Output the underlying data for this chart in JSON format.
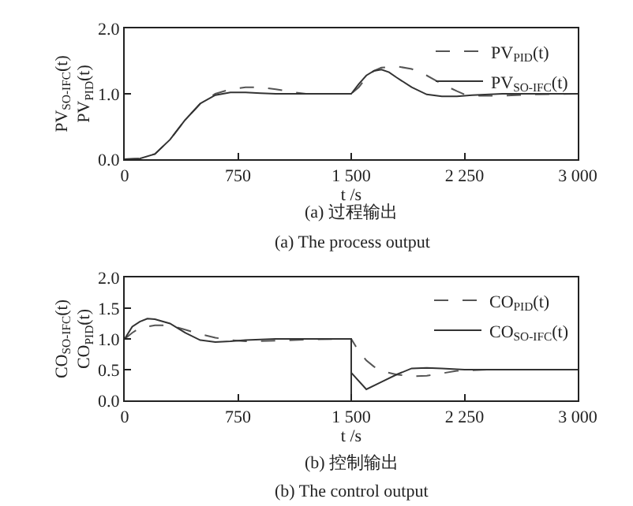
{
  "chart_data": [
    {
      "type": "line",
      "xlabel": "t /s",
      "ylabel": "PV$_{SO-IFC}$(t)\nPV$_{PID}$(t)",
      "xlim": [
        0,
        3000
      ],
      "ylim": [
        0,
        2
      ],
      "xticks": [
        {
          "value": 0,
          "label": "0"
        },
        {
          "value": 750,
          "label": "750"
        },
        {
          "value": 1500,
          "label": "1 500"
        },
        {
          "value": 2250,
          "label": "2 250"
        },
        {
          "value": 3000,
          "label": "3 000"
        }
      ],
      "yticks": [
        {
          "value": 0,
          "label": "0.0"
        },
        {
          "value": 1,
          "label": "1.0"
        },
        {
          "value": 2,
          "label": "2.0"
        }
      ],
      "legend": "top right",
      "series": [
        {
          "name": "PV$_{PID}$(t)",
          "color": "#555555",
          "line_style": "dashed",
          "x": [
            0,
            100,
            200,
            300,
            400,
            500,
            600,
            700,
            800,
            900,
            1000,
            1100,
            1200,
            1300,
            1400,
            1500,
            1550,
            1600,
            1650,
            1700,
            1800,
            1900,
            2000,
            2100,
            2200,
            2250,
            2350,
            2500,
            2700,
            3000
          ],
          "values": [
            0,
            0.01,
            0.08,
            0.3,
            0.6,
            0.85,
            1.0,
            1.07,
            1.1,
            1.1,
            1.07,
            1.03,
            1.0,
            1.0,
            1.0,
            1.0,
            1.1,
            1.25,
            1.35,
            1.4,
            1.42,
            1.38,
            1.28,
            1.15,
            1.04,
            0.99,
            0.97,
            0.97,
            0.99,
            1.0
          ]
        },
        {
          "name": "PV$_{SO-IFC}$(t)",
          "color": "#333333",
          "line_style": "solid",
          "x": [
            0,
            100,
            200,
            300,
            400,
            500,
            600,
            700,
            800,
            900,
            1000,
            1200,
            1400,
            1500,
            1550,
            1600,
            1650,
            1700,
            1750,
            1800,
            1900,
            2000,
            2100,
            2200,
            2300,
            2500,
            3000
          ],
          "values": [
            0,
            0.01,
            0.08,
            0.3,
            0.6,
            0.85,
            0.98,
            1.02,
            1.02,
            1.01,
            1.0,
            1.0,
            1.0,
            1.0,
            1.15,
            1.28,
            1.35,
            1.37,
            1.33,
            1.25,
            1.1,
            0.99,
            0.96,
            0.96,
            0.98,
            1.0,
            1.0
          ]
        }
      ],
      "annotations": [
        "(a) 过程输出",
        "(a) The process output"
      ]
    },
    {
      "type": "line",
      "xlabel": "t /s",
      "ylabel": "CO$_{SO-IFC}$(t)\nCO$_{PID}$(t)",
      "xlim": [
        0,
        3000
      ],
      "ylim": [
        0,
        2
      ],
      "xticks": [
        {
          "value": 0,
          "label": "0"
        },
        {
          "value": 750,
          "label": "750"
        },
        {
          "value": 1500,
          "label": "1 500"
        },
        {
          "value": 2250,
          "label": "2 250"
        },
        {
          "value": 3000,
          "label": "3 000"
        }
      ],
      "yticks": [
        {
          "value": 0,
          "label": "0.0"
        },
        0.5,
        {
          "value": 1,
          "label": "1.0"
        },
        1.5,
        {
          "value": 2,
          "label": "2.0"
        }
      ],
      "legend": "top right",
      "series": [
        {
          "name": "CO$_{PID}$(t)",
          "color": "#555555",
          "line_style": "dashed",
          "x": [
            0,
            50,
            100,
            150,
            200,
            300,
            400,
            500,
            600,
            700,
            800,
            1000,
            1200,
            1500,
            1550,
            1600,
            1650,
            1700,
            1800,
            1900,
            2000,
            2100,
            2200,
            2400,
            3000
          ],
          "values": [
            1.0,
            1.1,
            1.18,
            1.2,
            1.22,
            1.22,
            1.15,
            1.08,
            1.02,
            0.98,
            0.96,
            0.97,
            0.99,
            1.0,
            0.8,
            0.65,
            0.55,
            0.48,
            0.42,
            0.39,
            0.4,
            0.44,
            0.48,
            0.5,
            0.5
          ]
        },
        {
          "name": "CO$_{SO-IFC}$(t)",
          "color": "#333333",
          "line_style": "solid",
          "x": [
            0,
            50,
            100,
            150,
            200,
            300,
            400,
            500,
            600,
            700,
            800,
            1000,
            1200,
            1500,
            1500,
            1500,
            1600,
            1700,
            1800,
            1900,
            2000,
            2100,
            2250,
            3000
          ],
          "values": [
            1.0,
            1.2,
            1.28,
            1.33,
            1.32,
            1.25,
            1.1,
            0.98,
            0.95,
            0.96,
            0.98,
            1.0,
            1.0,
            1.0,
            0,
            0.45,
            0.18,
            0.3,
            0.42,
            0.52,
            0.53,
            0.52,
            0.5,
            0.5
          ]
        }
      ],
      "annotations": [
        "(b) 控制输出",
        "(b) The control output"
      ]
    }
  ]
}
